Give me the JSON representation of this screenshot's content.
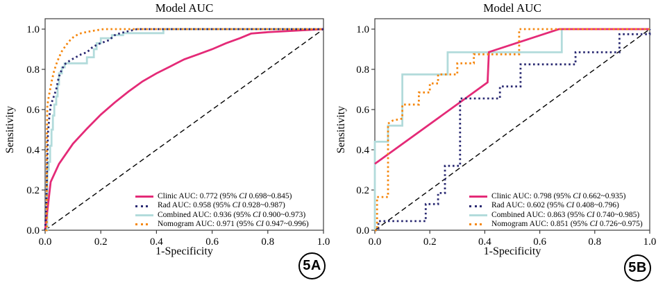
{
  "chart_data": [
    {
      "type": "line",
      "title": "Model AUC",
      "xlabel": "1-Specificity",
      "ylabel": "Sensitivity",
      "tag": "5A",
      "xlim": [
        0,
        1
      ],
      "ylim": [
        0,
        1
      ],
      "x_ticks": [
        "0.0",
        "0.2",
        "0.4",
        "0.6",
        "0.8",
        "1.0"
      ],
      "y_ticks": [
        "0.0",
        "0.2",
        "0.4",
        "0.6",
        "0.8",
        "1.0"
      ],
      "grid": false,
      "legend_position": "lower right",
      "series": [
        {
          "name": "Clinic",
          "auc": 0.772,
          "ci": "0.698~0.845",
          "color": "#E42A77",
          "line": "solid",
          "points": [
            [
              0,
              0
            ],
            [
              0.02,
              0.24
            ],
            [
              0.05,
              0.33
            ],
            [
              0.1,
              0.43
            ],
            [
              0.15,
              0.505
            ],
            [
              0.2,
              0.575
            ],
            [
              0.25,
              0.635
            ],
            [
              0.3,
              0.69
            ],
            [
              0.35,
              0.74
            ],
            [
              0.4,
              0.78
            ],
            [
              0.45,
              0.815
            ],
            [
              0.5,
              0.85
            ],
            [
              0.55,
              0.875
            ],
            [
              0.6,
              0.9
            ],
            [
              0.65,
              0.93
            ],
            [
              0.7,
              0.955
            ],
            [
              0.74,
              0.978
            ],
            [
              0.8,
              0.985
            ],
            [
              1,
              1
            ]
          ]
        },
        {
          "name": "Rad",
          "auc": 0.958,
          "ci": "0.928~0.987",
          "color": "#2A2A72",
          "line": "dotted",
          "points": [
            [
              0,
              0
            ],
            [
              0.005,
              0.16
            ],
            [
              0.008,
              0.35
            ],
            [
              0.01,
              0.48
            ],
            [
              0.015,
              0.56
            ],
            [
              0.02,
              0.62
            ],
            [
              0.03,
              0.66
            ],
            [
              0.04,
              0.7
            ],
            [
              0.045,
              0.735
            ],
            [
              0.05,
              0.765
            ],
            [
              0.06,
              0.8
            ],
            [
              0.07,
              0.825
            ],
            [
              0.09,
              0.845
            ],
            [
              0.11,
              0.86
            ],
            [
              0.13,
              0.875
            ],
            [
              0.15,
              0.885
            ],
            [
              0.17,
              0.91
            ],
            [
              0.19,
              0.925
            ],
            [
              0.21,
              0.935
            ],
            [
              0.23,
              0.945
            ],
            [
              0.25,
              0.97
            ],
            [
              0.27,
              0.98
            ],
            [
              0.3,
              0.99
            ],
            [
              0.33,
              1
            ],
            [
              1,
              1
            ]
          ]
        },
        {
          "name": "Combined",
          "auc": 0.936,
          "ci": "0.900~0.973",
          "color": "#B2DBDB",
          "line": "solid",
          "points": [
            [
              0,
              0
            ],
            [
              0.008,
              0
            ],
            [
              0.008,
              0.3
            ],
            [
              0.013,
              0.3
            ],
            [
              0.013,
              0.34
            ],
            [
              0.018,
              0.34
            ],
            [
              0.018,
              0.42
            ],
            [
              0.023,
              0.42
            ],
            [
              0.023,
              0.5
            ],
            [
              0.028,
              0.5
            ],
            [
              0.028,
              0.57
            ],
            [
              0.033,
              0.57
            ],
            [
              0.033,
              0.625
            ],
            [
              0.04,
              0.625
            ],
            [
              0.04,
              0.665
            ],
            [
              0.045,
              0.665
            ],
            [
              0.045,
              0.725
            ],
            [
              0.05,
              0.725
            ],
            [
              0.05,
              0.78
            ],
            [
              0.06,
              0.78
            ],
            [
              0.06,
              0.81
            ],
            [
              0.07,
              0.81
            ],
            [
              0.07,
              0.83
            ],
            [
              0.15,
              0.83
            ],
            [
              0.15,
              0.86
            ],
            [
              0.175,
              0.86
            ],
            [
              0.175,
              0.9
            ],
            [
              0.185,
              0.9
            ],
            [
              0.185,
              0.93
            ],
            [
              0.2,
              0.93
            ],
            [
              0.2,
              0.955
            ],
            [
              0.24,
              0.955
            ],
            [
              0.24,
              0.97
            ],
            [
              0.28,
              0.97
            ],
            [
              0.28,
              0.98
            ],
            [
              0.425,
              0.98
            ],
            [
              0.425,
              1
            ],
            [
              1,
              1
            ]
          ]
        },
        {
          "name": "Nomogram",
          "auc": 0.971,
          "ci": "0.947~0.996",
          "color": "#F5870F",
          "line": "dotted",
          "points": [
            [
              0,
              0
            ],
            [
              0.006,
              0
            ],
            [
              0.006,
              0.45
            ],
            [
              0.008,
              0.62
            ],
            [
              0.012,
              0.655
            ],
            [
              0.018,
              0.7
            ],
            [
              0.025,
              0.75
            ],
            [
              0.032,
              0.79
            ],
            [
              0.04,
              0.825
            ],
            [
              0.05,
              0.86
            ],
            [
              0.06,
              0.89
            ],
            [
              0.075,
              0.92
            ],
            [
              0.09,
              0.945
            ],
            [
              0.105,
              0.965
            ],
            [
              0.13,
              0.98
            ],
            [
              0.165,
              0.99
            ],
            [
              0.21,
              1
            ],
            [
              1,
              1
            ]
          ]
        },
        {
          "name": "Reference",
          "color": "#000000",
          "line": "dashed",
          "points": [
            [
              0,
              0
            ],
            [
              1,
              1
            ]
          ]
        }
      ],
      "legend": [
        {
          "series": 0,
          "pre": "Clinic AUC: 0.772 (95% ",
          "ci": "CI",
          "post": " 0.698~0.845)"
        },
        {
          "series": 1,
          "pre": "Rad AUC: 0.958 (95% ",
          "ci": "CI",
          "post": " 0.928~0.987)"
        },
        {
          "series": 2,
          "pre": "Combined AUC: 0.936 (95% ",
          "ci": "CI",
          "post": " 0.900~0.973)"
        },
        {
          "series": 3,
          "pre": "Nomogram AUC: 0.971 (95% ",
          "ci": "CI",
          "post": " 0.947~0.996)"
        }
      ]
    },
    {
      "type": "line",
      "title": "Model AUC",
      "xlabel": "1-Specificity",
      "ylabel": "Sensitivity",
      "tag": "5B",
      "xlim": [
        0,
        1
      ],
      "ylim": [
        0,
        1
      ],
      "x_ticks": [
        "0.0",
        "0.2",
        "0.4",
        "0.6",
        "0.8",
        "1.0"
      ],
      "y_ticks": [
        "0.0",
        "0.2",
        "0.4",
        "0.6",
        "0.8",
        "1.0"
      ],
      "grid": false,
      "legend_position": "lower right",
      "series": [
        {
          "name": "Clinic",
          "auc": 0.798,
          "ci": "0.662~0.935",
          "color": "#E42A77",
          "line": "solid",
          "points": [
            [
              0,
              0.33
            ],
            [
              0.41,
              0.735
            ],
            [
              0.415,
              0.886
            ],
            [
              0.67,
              1
            ],
            [
              1,
              1
            ]
          ]
        },
        {
          "name": "Rad",
          "auc": 0.602,
          "ci": "0.408~0.796",
          "color": "#2A2A72",
          "line": "dotted",
          "points": [
            [
              0,
              0
            ],
            [
              0.013,
              0
            ],
            [
              0.013,
              0.045
            ],
            [
              0.185,
              0.045
            ],
            [
              0.185,
              0.13
            ],
            [
              0.23,
              0.13
            ],
            [
              0.23,
              0.185
            ],
            [
              0.255,
              0.185
            ],
            [
              0.255,
              0.32
            ],
            [
              0.31,
              0.32
            ],
            [
              0.31,
              0.655
            ],
            [
              0.455,
              0.655
            ],
            [
              0.455,
              0.715
            ],
            [
              0.53,
              0.715
            ],
            [
              0.53,
              0.825
            ],
            [
              0.73,
              0.825
            ],
            [
              0.73,
              0.885
            ],
            [
              0.89,
              0.885
            ],
            [
              0.89,
              0.975
            ],
            [
              1,
              0.975
            ],
            [
              1,
              1
            ]
          ]
        },
        {
          "name": "Combined",
          "auc": 0.863,
          "ci": "0.740~0.985",
          "color": "#B2DBDB",
          "line": "solid",
          "points": [
            [
              0,
              0
            ],
            [
              0,
              0.44
            ],
            [
              0.048,
              0.44
            ],
            [
              0.048,
              0.52
            ],
            [
              0.1,
              0.52
            ],
            [
              0.1,
              0.775
            ],
            [
              0.265,
              0.775
            ],
            [
              0.265,
              0.885
            ],
            [
              0.68,
              0.885
            ],
            [
              0.68,
              1
            ],
            [
              1,
              1
            ]
          ]
        },
        {
          "name": "Nomogram",
          "auc": 0.851,
          "ci": "0.726~0.975",
          "color": "#F5870F",
          "line": "dotted",
          "points": [
            [
              0,
              0
            ],
            [
              0.008,
              0
            ],
            [
              0.008,
              0.165
            ],
            [
              0.048,
              0.165
            ],
            [
              0.048,
              0.53
            ],
            [
              0.065,
              0.545
            ],
            [
              0.1,
              0.555
            ],
            [
              0.1,
              0.625
            ],
            [
              0.16,
              0.625
            ],
            [
              0.16,
              0.685
            ],
            [
              0.2,
              0.685
            ],
            [
              0.2,
              0.73
            ],
            [
              0.23,
              0.73
            ],
            [
              0.23,
              0.775
            ],
            [
              0.3,
              0.775
            ],
            [
              0.3,
              0.83
            ],
            [
              0.36,
              0.83
            ],
            [
              0.36,
              0.875
            ],
            [
              0.525,
              0.875
            ],
            [
              0.525,
              1
            ],
            [
              1,
              1
            ]
          ]
        },
        {
          "name": "Reference",
          "color": "#000000",
          "line": "dashed",
          "points": [
            [
              0,
              0
            ],
            [
              1,
              1
            ]
          ]
        }
      ],
      "legend": [
        {
          "series": 0,
          "pre": "Clinic AUC: 0.798 (95% ",
          "ci": "CI",
          "post": " 0.662~0.935)"
        },
        {
          "series": 1,
          "pre": "Rad AUC: 0.602 (95% ",
          "ci": "CI",
          "post": " 0.408~0.796)"
        },
        {
          "series": 2,
          "pre": "Combined AUC: 0.863 (95% ",
          "ci": "CI",
          "post": " 0.740~0.985)"
        },
        {
          "series": 3,
          "pre": "Nomogram AUC: 0.851 (95% ",
          "ci": "CI",
          "post": " 0.726~0.975)"
        }
      ]
    }
  ]
}
